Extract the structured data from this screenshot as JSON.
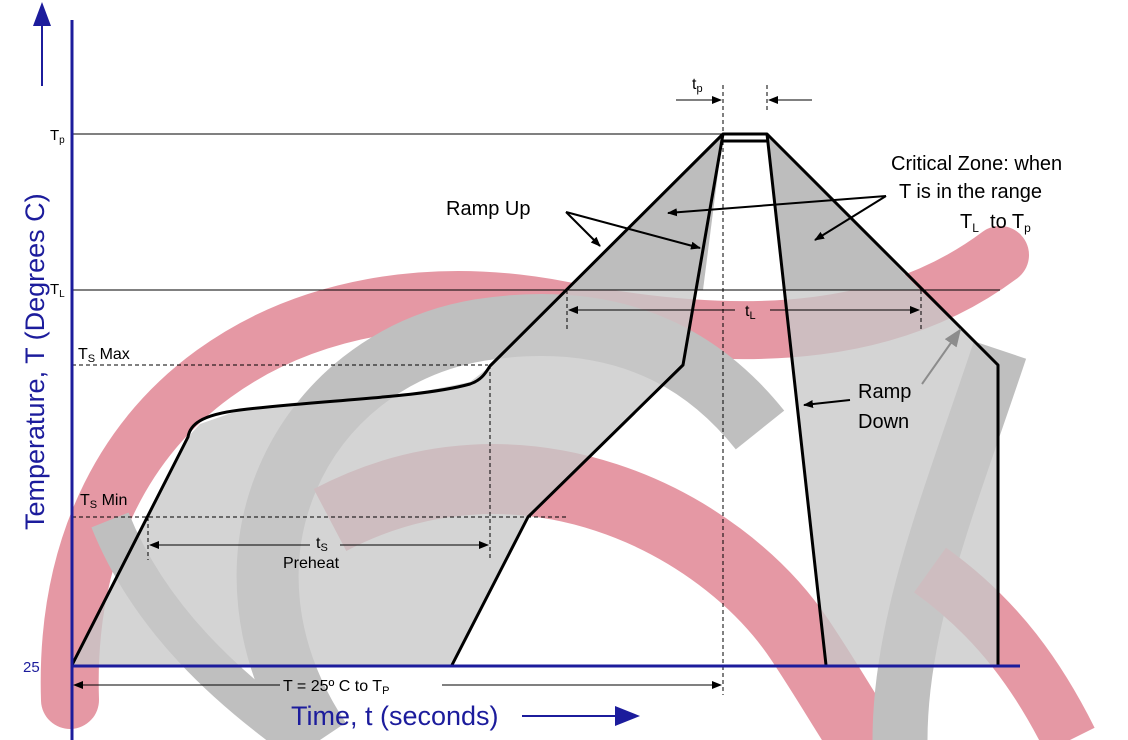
{
  "axes": {
    "y_title": "Temperature, T (Degrees C)",
    "x_title": "Time, t (seconds)",
    "y_levels": {
      "tp": {
        "main": "T",
        "sub": "p"
      },
      "tl": {
        "main": "T",
        "sub": "L"
      },
      "ts_max": {
        "main": "T",
        "sub": "S",
        "suffix": " Max"
      },
      "ts_min": {
        "main": "T",
        "sub": "S",
        "suffix": " Min"
      },
      "ambient": "25"
    }
  },
  "annotations": {
    "tp_width": {
      "main": "t",
      "sub": "p"
    },
    "tl_width": {
      "main": "t",
      "sub": "L"
    },
    "ts_width": {
      "main": "t",
      "sub": "S"
    },
    "preheat": "Preheat",
    "ramp_up": "Ramp Up",
    "ramp_down_line1": "Ramp",
    "ramp_down_line2": "Down",
    "critical_line1": "Critical Zone: when",
    "critical_line2": "T is in the range",
    "critical_line3": {
      "a_main": "T",
      "a_sub": "L",
      "mid": "  to T",
      "b_sub": "p"
    },
    "total_time": {
      "main": "T = 25º C to T",
      "sub": "P"
    }
  },
  "colors": {
    "axis": "#1c1c9c",
    "fill": "#c8c8c8",
    "watermark_red": "#d0455a",
    "watermark_gray": "#8c8c8c"
  }
}
